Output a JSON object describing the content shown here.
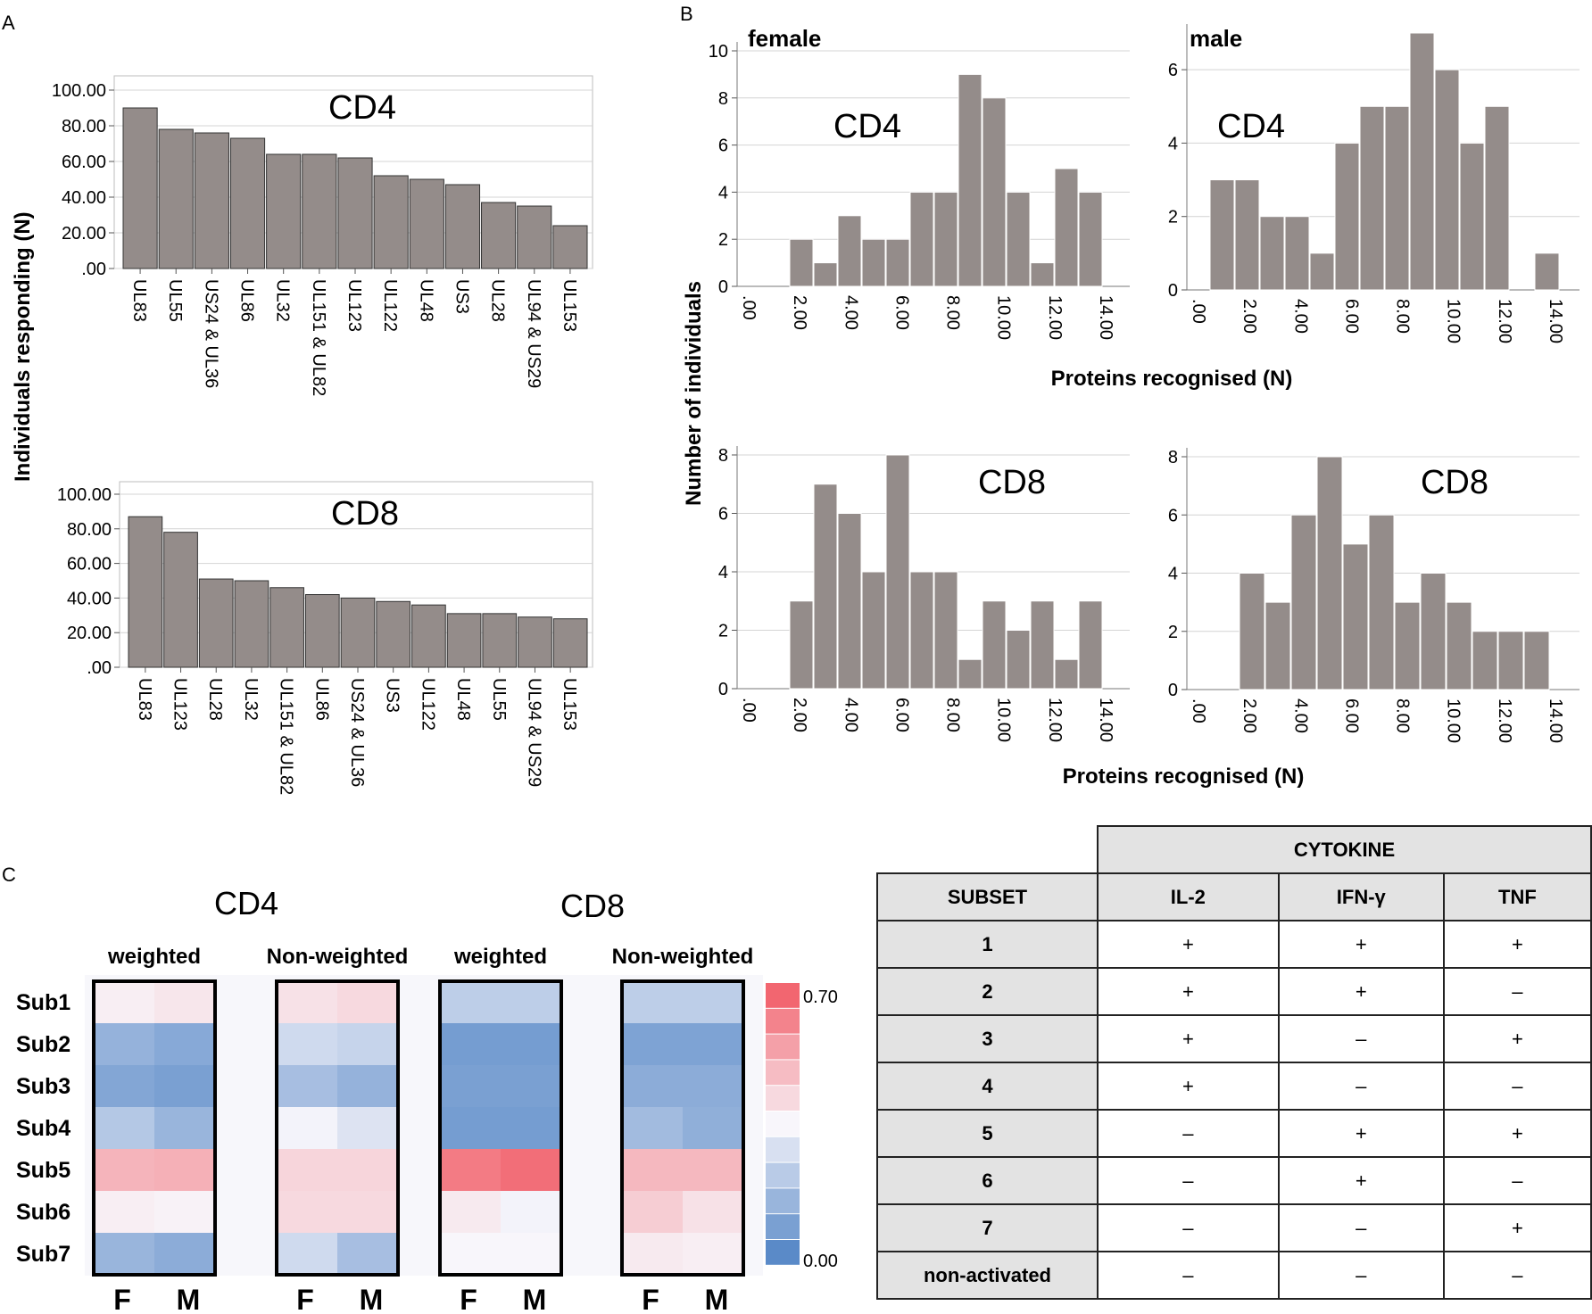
{
  "panel_labels": {
    "a": "A",
    "b": "B",
    "c": "C"
  },
  "chart_data": [
    {
      "id": "A-CD4",
      "type": "bar",
      "title": "CD4",
      "ylabel": "Individuals responding (N)",
      "ylim": [
        0,
        100
      ],
      "yticks": [
        ".00",
        "20.00",
        "40.00",
        "60.00",
        "80.00",
        "100.00"
      ],
      "categories": [
        "UL83",
        "UL55",
        "US24 & UL36",
        "UL86",
        "UL32",
        "UL151 & UL82",
        "UL123",
        "UL122",
        "UL48",
        "US3",
        "UL28",
        "UL94 & US29",
        "UL153"
      ],
      "values": [
        90,
        78,
        76,
        73,
        64,
        64,
        62,
        52,
        50,
        47,
        37,
        35,
        24
      ]
    },
    {
      "id": "A-CD8",
      "type": "bar",
      "title": "CD8",
      "ylim": [
        0,
        100
      ],
      "yticks": [
        ".00",
        "20.00",
        "40.00",
        "60.00",
        "80.00",
        "100.00"
      ],
      "categories": [
        "UL83",
        "UL123",
        "UL28",
        "UL32",
        "UL151 & UL82",
        "UL86",
        "US24 & UL36",
        "US3",
        "UL122",
        "UL48",
        "UL55",
        "UL94 & US29",
        "UL153"
      ],
      "values": [
        87,
        78,
        51,
        50,
        46,
        42,
        40,
        38,
        36,
        31,
        31,
        29,
        28
      ]
    },
    {
      "id": "B-female-CD4",
      "type": "bar",
      "title": "CD4",
      "subtitle": "female",
      "ylim": [
        0,
        10
      ],
      "yticks": [
        "0",
        "2",
        "4",
        "6",
        "8",
        "10"
      ],
      "xticks": [
        ".00",
        "2.00",
        "4.00",
        "6.00",
        "8.00",
        "10.00",
        "12.00",
        "14.00"
      ],
      "values": [
        2,
        1,
        3,
        2,
        2,
        4,
        4,
        9,
        8,
        4,
        1,
        5,
        4
      ]
    },
    {
      "id": "B-male-CD4",
      "type": "bar",
      "title": "CD4",
      "subtitle": "male",
      "ylim": [
        0,
        7
      ],
      "yticks": [
        "0",
        "2",
        "4",
        "6"
      ],
      "xticks": [
        ".00",
        "2.00",
        "4.00",
        "6.00",
        "8.00",
        "10.00",
        "12.00",
        "14.00"
      ],
      "values": [
        3,
        3,
        2,
        2,
        1,
        4,
        5,
        5,
        7,
        6,
        4,
        5,
        0,
        1
      ]
    },
    {
      "id": "B-female-CD8",
      "type": "bar",
      "title": "CD8",
      "ylim": [
        0,
        8
      ],
      "yticks": [
        "0",
        "2",
        "4",
        "6",
        "8"
      ],
      "xticks": [
        ".00",
        "2.00",
        "4.00",
        "6.00",
        "8.00",
        "10.00",
        "12.00",
        "14.00"
      ],
      "values": [
        3,
        7,
        6,
        4,
        8,
        4,
        4,
        1,
        3,
        2,
        3,
        1,
        3
      ]
    },
    {
      "id": "B-male-CD8",
      "type": "bar",
      "title": "CD8",
      "ylim": [
        0,
        8
      ],
      "yticks": [
        "0",
        "2",
        "4",
        "6",
        "8"
      ],
      "xticks": [
        ".00",
        "2.00",
        "4.00",
        "6.00",
        "8.00",
        "10.00",
        "12.00",
        "14.00"
      ],
      "values": [
        4,
        3,
        6,
        8,
        5,
        6,
        3,
        4,
        3,
        2,
        2,
        2
      ]
    },
    {
      "id": "C-heatmap",
      "type": "heatmap",
      "titles": [
        "CD4",
        "CD8"
      ],
      "groups": [
        "weighted",
        "Non-weighted",
        "weighted",
        "Non-weighted"
      ],
      "rows": [
        "Sub1",
        "Sub2",
        "Sub3",
        "Sub4",
        "Sub5",
        "Sub6",
        "Sub7"
      ],
      "cols": [
        "F",
        "M"
      ],
      "scale": {
        "min": "0.00",
        "max": "0.70"
      },
      "values": [
        [
          [
            0.37,
            0.39
          ],
          [
            0.13,
            0.1
          ],
          [
            0.09,
            0.07
          ],
          [
            0.2,
            0.14
          ],
          [
            0.51,
            0.52
          ],
          [
            0.37,
            0.36
          ],
          [
            0.14,
            0.11
          ]
        ],
        [
          [
            0.4,
            0.42
          ],
          [
            0.26,
            0.24
          ],
          [
            0.17,
            0.13
          ],
          [
            0.34,
            0.29
          ],
          [
            0.43,
            0.43
          ],
          [
            0.42,
            0.42
          ],
          [
            0.26,
            0.17
          ]
        ],
        [
          [
            0.22,
            0.22
          ],
          [
            0.06,
            0.06
          ],
          [
            0.07,
            0.07
          ],
          [
            0.06,
            0.06
          ],
          [
            0.65,
            0.68
          ],
          [
            0.38,
            0.34
          ],
          [
            0.35,
            0.35
          ]
        ],
        [
          [
            0.22,
            0.22
          ],
          [
            0.08,
            0.08
          ],
          [
            0.11,
            0.11
          ],
          [
            0.16,
            0.12
          ],
          [
            0.5,
            0.5
          ],
          [
            0.45,
            0.4
          ],
          [
            0.38,
            0.37
          ]
        ]
      ]
    },
    {
      "id": "C-table",
      "type": "table",
      "header_group": "CYTOKINE",
      "columns": [
        "SUBSET",
        "IL-2",
        "IFN-γ",
        "TNF"
      ],
      "rows": [
        [
          "1",
          "+",
          "+",
          "+"
        ],
        [
          "2",
          "+",
          "+",
          "–"
        ],
        [
          "3",
          "+",
          "–",
          "+"
        ],
        [
          "4",
          "+",
          "–",
          "–"
        ],
        [
          "5",
          "–",
          "+",
          "+"
        ],
        [
          "6",
          "–",
          "+",
          "–"
        ],
        [
          "7",
          "–",
          "–",
          "+"
        ],
        [
          "non-activated",
          "–",
          "–",
          "–"
        ]
      ]
    }
  ],
  "axis_titles": {
    "b_x": "Proteins recognised (N)",
    "b_y": "Number of individuals"
  },
  "colors": {
    "bar": "#948c8a",
    "grid": "#d4d4d4",
    "pos": "#f26670",
    "neg": "#5a8ac8",
    "mid": "#f8f6fb"
  }
}
